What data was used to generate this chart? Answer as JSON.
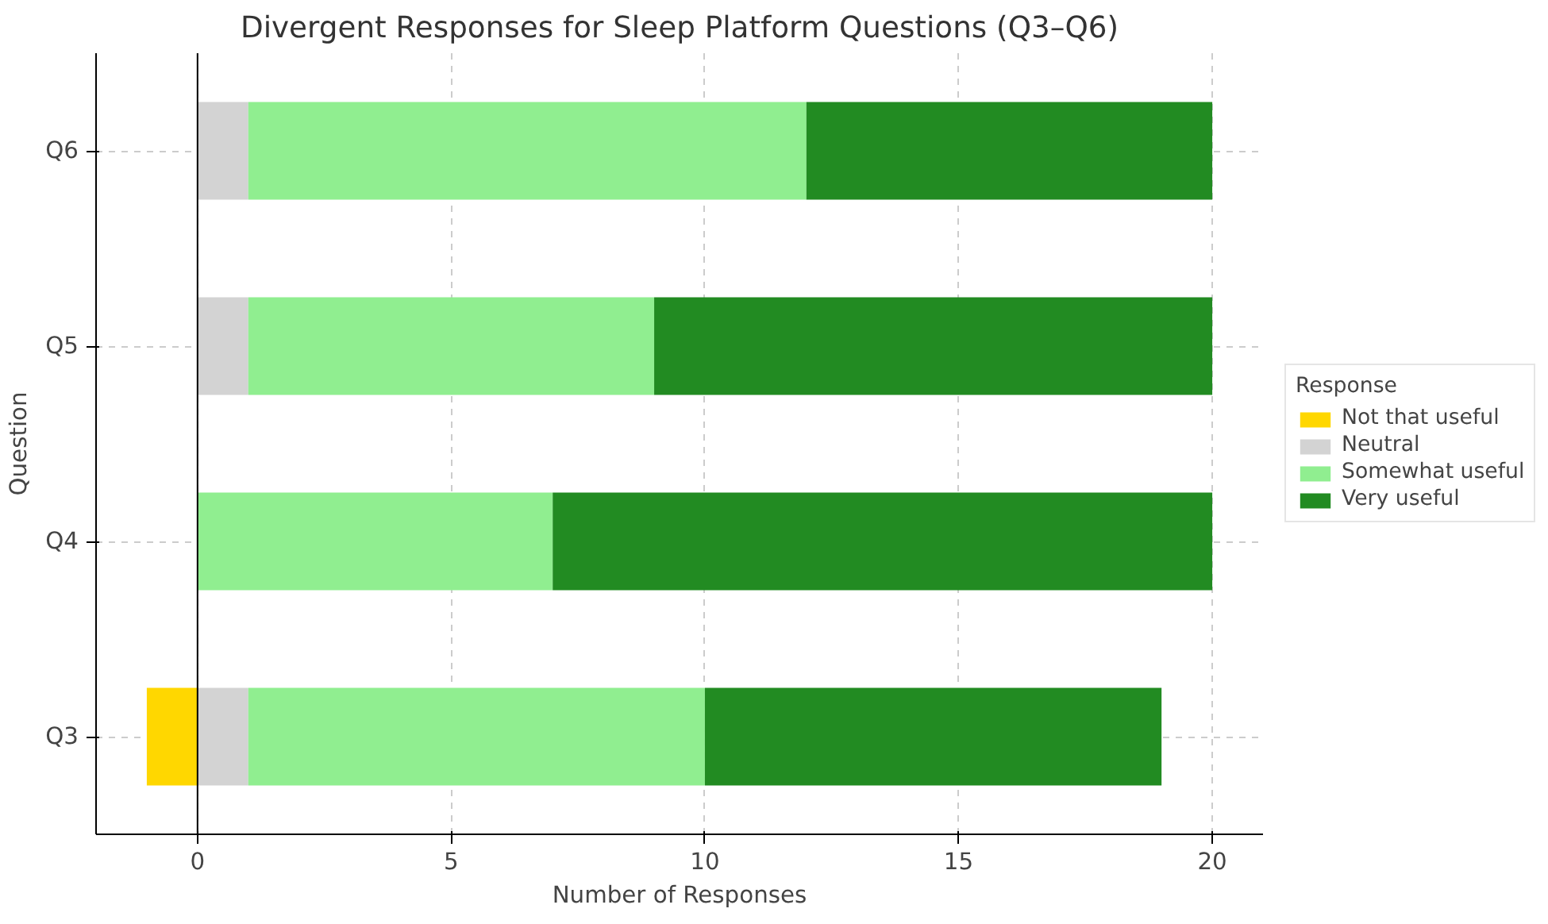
{
  "chart_data": {
    "type": "bar",
    "orientation": "horizontal",
    "stacked": true,
    "title": "Divergent Responses for Sleep Platform Questions (Q3–Q6)",
    "xlabel": "Number of Responses",
    "ylabel": "Question",
    "legend_title": "Response",
    "categories": [
      "Q6",
      "Q5",
      "Q4",
      "Q3"
    ],
    "series": [
      {
        "name": "Not that useful",
        "color": "#ffd700",
        "values": [
          null,
          null,
          null,
          -1
        ]
      },
      {
        "name": "Neutral",
        "color": "#d3d3d3",
        "values": [
          1,
          1,
          null,
          1
        ]
      },
      {
        "name": "Somewhat useful",
        "color": "#90ee90",
        "values": [
          11,
          8,
          7,
          9
        ]
      },
      {
        "name": "Very useful",
        "color": "#228b22",
        "values": [
          8,
          11,
          13,
          9
        ]
      }
    ],
    "xlim": [
      -2,
      21
    ],
    "xticks": [
      0,
      5,
      10,
      15,
      20
    ],
    "grid": true,
    "legend": "right",
    "ref_lines": [
      {
        "axis": "x",
        "value": 0,
        "color": "#000000"
      }
    ]
  }
}
